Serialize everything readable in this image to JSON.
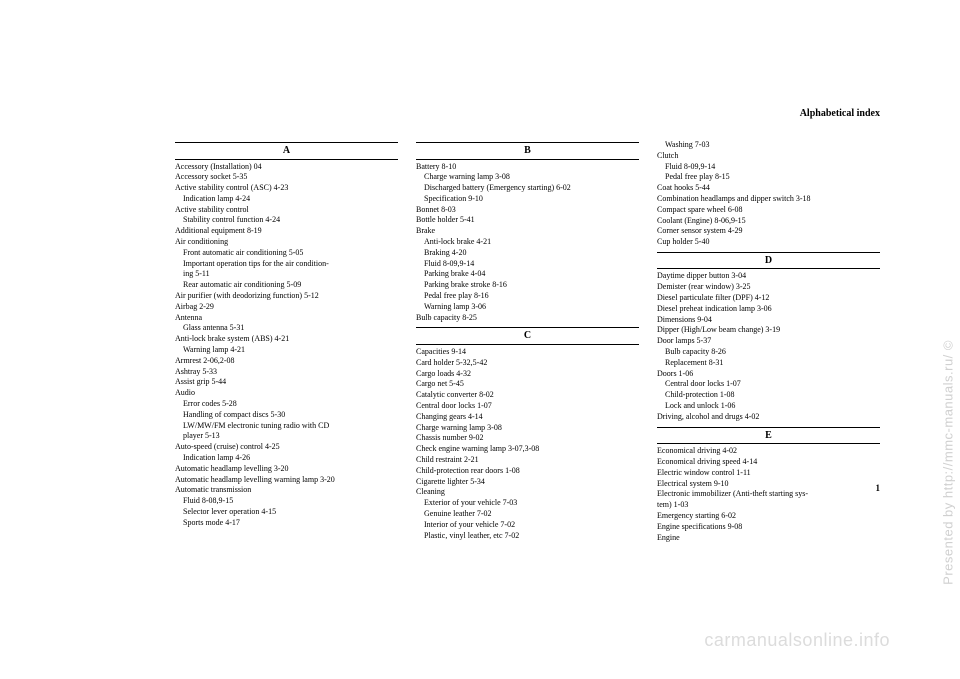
{
  "header": {
    "title": "Alphabetical index"
  },
  "pageNumber": "1",
  "watermarkRight": "Presented by http://mmc-manuals.ru/ ©",
  "watermarkBottom": "carmanualsonline.info",
  "col1": {
    "sectionA": "A",
    "entries": [
      {
        "t": "Accessory (Installation)  04",
        "lvl": 0
      },
      {
        "t": "Accessory socket  5-35",
        "lvl": 0
      },
      {
        "t": "Active stability control (ASC)  4-23",
        "lvl": 0
      },
      {
        "t": "Indication lamp  4-24",
        "lvl": 1
      },
      {
        "t": "Active stability control",
        "lvl": 0
      },
      {
        "t": "Stability control function  4-24",
        "lvl": 1
      },
      {
        "t": "Additional equipment  8-19",
        "lvl": 0
      },
      {
        "t": "Air conditioning",
        "lvl": 0
      },
      {
        "t": "Front automatic air conditioning  5-05",
        "lvl": 1
      },
      {
        "t": "Important operation tips for the air condition-",
        "lvl": 1
      },
      {
        "t": "ing  5-11",
        "lvl": 1
      },
      {
        "t": "Rear automatic air conditioning  5-09",
        "lvl": 1
      },
      {
        "t": "Air purifier (with deodorizing function)  5-12",
        "lvl": 0
      },
      {
        "t": "Airbag  2-29",
        "lvl": 0
      },
      {
        "t": "Antenna",
        "lvl": 0
      },
      {
        "t": "Glass antenna  5-31",
        "lvl": 1
      },
      {
        "t": "Anti-lock brake system (ABS)  4-21",
        "lvl": 0
      },
      {
        "t": "Warning lamp  4-21",
        "lvl": 1
      },
      {
        "t": "Armrest  2-06,2-08",
        "lvl": 0
      },
      {
        "t": "Ashtray  5-33",
        "lvl": 0
      },
      {
        "t": "Assist grip  5-44",
        "lvl": 0
      },
      {
        "t": "Audio",
        "lvl": 0
      },
      {
        "t": "Error codes  5-28",
        "lvl": 1
      },
      {
        "t": "Handling of compact discs  5-30",
        "lvl": 1
      },
      {
        "t": "LW/MW/FM electronic tuning radio with CD",
        "lvl": 1
      },
      {
        "t": "player  5-13",
        "lvl": 1
      },
      {
        "t": "Auto-speed (cruise) control  4-25",
        "lvl": 0
      },
      {
        "t": "Indication lamp  4-26",
        "lvl": 1
      },
      {
        "t": "Automatic headlamp levelling  3-20",
        "lvl": 0
      },
      {
        "t": "Automatic headlamp levelling warning lamp  3-20",
        "lvl": 0
      },
      {
        "t": "Automatic transmission",
        "lvl": 0
      },
      {
        "t": "Fluid  8-08,9-15",
        "lvl": 1
      },
      {
        "t": "Selector lever operation  4-15",
        "lvl": 1
      },
      {
        "t": "Sports mode  4-17",
        "lvl": 1
      }
    ]
  },
  "col2": {
    "sectionB": "B",
    "entriesB": [
      {
        "t": "Battery  8-10",
        "lvl": 0
      },
      {
        "t": "Charge warning lamp  3-08",
        "lvl": 1
      },
      {
        "t": "Discharged battery (Emergency starting)  6-02",
        "lvl": 1
      },
      {
        "t": "Specification  9-10",
        "lvl": 1
      },
      {
        "t": "Bonnet  8-03",
        "lvl": 0
      },
      {
        "t": "Bottle holder  5-41",
        "lvl": 0
      },
      {
        "t": "Brake",
        "lvl": 0
      },
      {
        "t": "Anti-lock brake  4-21",
        "lvl": 1
      },
      {
        "t": "Braking  4-20",
        "lvl": 1
      },
      {
        "t": "Fluid  8-09,9-14",
        "lvl": 1
      },
      {
        "t": "Parking brake  4-04",
        "lvl": 1
      },
      {
        "t": "Parking brake stroke  8-16",
        "lvl": 1
      },
      {
        "t": "Pedal free play  8-16",
        "lvl": 1
      },
      {
        "t": "Warning lamp  3-06",
        "lvl": 1
      },
      {
        "t": "Bulb capacity  8-25",
        "lvl": 0
      }
    ],
    "sectionC": "C",
    "entriesC": [
      {
        "t": "Capacities  9-14",
        "lvl": 0
      },
      {
        "t": "Card holder  5-32,5-42",
        "lvl": 0
      },
      {
        "t": "Cargo loads  4-32",
        "lvl": 0
      },
      {
        "t": "Cargo net  5-45",
        "lvl": 0
      },
      {
        "t": "Catalytic converter  8-02",
        "lvl": 0
      },
      {
        "t": "Central door locks  1-07",
        "lvl": 0
      },
      {
        "t": "Changing gears  4-14",
        "lvl": 0
      },
      {
        "t": "Charge warning lamp  3-08",
        "lvl": 0
      },
      {
        "t": "Chassis number  9-02",
        "lvl": 0
      },
      {
        "t": "Check engine warning lamp  3-07,3-08",
        "lvl": 0
      },
      {
        "t": "Child restraint  2-21",
        "lvl": 0
      },
      {
        "t": "Child-protection rear doors  1-08",
        "lvl": 0
      },
      {
        "t": "Cigarette lighter  5-34",
        "lvl": 0
      },
      {
        "t": "Cleaning",
        "lvl": 0
      },
      {
        "t": "Exterior of your vehicle  7-03",
        "lvl": 1
      },
      {
        "t": "Genuine leather  7-02",
        "lvl": 1
      },
      {
        "t": "Interior of your vehicle  7-02",
        "lvl": 1
      },
      {
        "t": "Plastic, vinyl leather, etc  7-02",
        "lvl": 1
      }
    ]
  },
  "col3": {
    "entriesCcont": [
      {
        "t": "Washing  7-03",
        "lvl": 1
      },
      {
        "t": "Clutch",
        "lvl": 0
      },
      {
        "t": "Fluid  8-09,9-14",
        "lvl": 1
      },
      {
        "t": "Pedal free play  8-15",
        "lvl": 1
      },
      {
        "t": "Coat hooks  5-44",
        "lvl": 0
      },
      {
        "t": "Combination headlamps and dipper switch  3-18",
        "lvl": 0
      },
      {
        "t": "Compact spare wheel  6-08",
        "lvl": 0
      },
      {
        "t": "Coolant (Engine)  8-06,9-15",
        "lvl": 0
      },
      {
        "t": "Corner sensor system  4-29",
        "lvl": 0
      },
      {
        "t": "Cup holder  5-40",
        "lvl": 0
      }
    ],
    "sectionD": "D",
    "entriesD": [
      {
        "t": "Daytime dipper button  3-04",
        "lvl": 0
      },
      {
        "t": "Demister (rear window)  3-25",
        "lvl": 0
      },
      {
        "t": "Diesel particulate filter (DPF)  4-12",
        "lvl": 0
      },
      {
        "t": "Diesel preheat indication lamp  3-06",
        "lvl": 0
      },
      {
        "t": "Dimensions  9-04",
        "lvl": 0
      },
      {
        "t": "Dipper (High/Low beam change)  3-19",
        "lvl": 0
      },
      {
        "t": "Door lamps  5-37",
        "lvl": 0
      },
      {
        "t": "Bulb capacity  8-26",
        "lvl": 1
      },
      {
        "t": "Replacement  8-31",
        "lvl": 1
      },
      {
        "t": "Doors  1-06",
        "lvl": 0
      },
      {
        "t": "Central door locks  1-07",
        "lvl": 1
      },
      {
        "t": "Child-protection  1-08",
        "lvl": 1
      },
      {
        "t": "Lock and unlock  1-06",
        "lvl": 1
      },
      {
        "t": "Driving, alcohol and drugs  4-02",
        "lvl": 0
      }
    ],
    "sectionE": "E",
    "entriesE": [
      {
        "t": "Economical driving  4-02",
        "lvl": 0
      },
      {
        "t": "Economical driving speed  4-14",
        "lvl": 0
      },
      {
        "t": "Electric window control  1-11",
        "lvl": 0
      },
      {
        "t": "Electrical system  9-10",
        "lvl": 0
      },
      {
        "t": "Electronic immobilizer (Anti-theft starting sys-",
        "lvl": 0
      },
      {
        "t": "tem)  1-03",
        "lvl": 0
      },
      {
        "t": "Emergency starting  6-02",
        "lvl": 0
      },
      {
        "t": "Engine specifications  9-08",
        "lvl": 0
      },
      {
        "t": "Engine",
        "lvl": 0
      }
    ]
  }
}
